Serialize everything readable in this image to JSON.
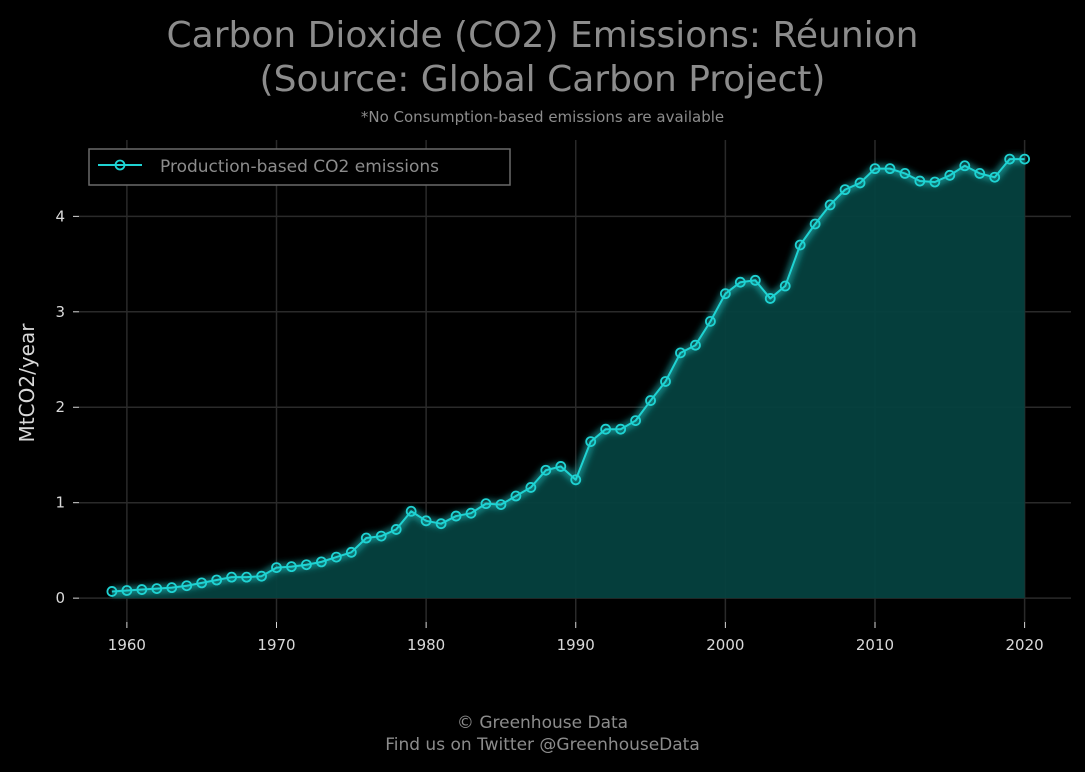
{
  "header": {
    "title_line1": "Carbon Dioxide (CO2) Emissions: Réunion",
    "title_line2": "(Source: Global Carbon Project)",
    "subtitle": "*No Consumption-based emissions are available"
  },
  "footer": {
    "line1": "© Greenhouse Data",
    "line2": "Find us on Twitter @GreenhouseData"
  },
  "colors": {
    "background": "#000000",
    "line": "#1fd3d3",
    "fill": "#05413f",
    "grid": "#2a2a2a",
    "text": "#d9d9d9",
    "title": "#8c8c8c"
  },
  "chart_data": {
    "type": "area",
    "title": "Carbon Dioxide (CO2) Emissions: Réunion (Source: Global Carbon Project)",
    "subtitle": "*No Consumption-based emissions are available",
    "xlabel": "",
    "ylabel": "MtCO2/year",
    "xlim": [
      1956.8,
      2023.1
    ],
    "ylim": [
      -0.25,
      4.8
    ],
    "x_ticks": [
      1960,
      1970,
      1980,
      1990,
      2000,
      2010,
      2020
    ],
    "y_ticks": [
      0,
      1,
      2,
      3,
      4
    ],
    "grid": true,
    "legend_position": "top-left",
    "series": [
      {
        "name": "Production-based CO2 emissions",
        "marker": "circle",
        "x": [
          1959,
          1960,
          1961,
          1962,
          1963,
          1964,
          1965,
          1966,
          1967,
          1968,
          1969,
          1970,
          1971,
          1972,
          1973,
          1974,
          1975,
          1976,
          1977,
          1978,
          1979,
          1980,
          1981,
          1982,
          1983,
          1984,
          1985,
          1986,
          1987,
          1988,
          1989,
          1990,
          1991,
          1992,
          1993,
          1994,
          1995,
          1996,
          1997,
          1998,
          1999,
          2000,
          2001,
          2002,
          2003,
          2004,
          2005,
          2006,
          2007,
          2008,
          2009,
          2010,
          2011,
          2012,
          2013,
          2014,
          2015,
          2016,
          2017,
          2018,
          2019,
          2020
        ],
        "values": [
          0.07,
          0.08,
          0.09,
          0.1,
          0.11,
          0.13,
          0.16,
          0.19,
          0.22,
          0.22,
          0.23,
          0.32,
          0.33,
          0.35,
          0.38,
          0.43,
          0.48,
          0.63,
          0.65,
          0.72,
          0.91,
          0.81,
          0.78,
          0.86,
          0.89,
          0.99,
          0.98,
          1.07,
          1.16,
          1.34,
          1.38,
          1.24,
          1.64,
          1.77,
          1.77,
          1.86,
          2.07,
          2.27,
          2.57,
          2.65,
          2.9,
          3.19,
          3.31,
          3.33,
          3.14,
          3.27,
          3.7,
          3.92,
          4.12,
          4.28,
          4.35,
          4.5,
          4.5,
          4.45,
          4.37,
          4.36,
          4.43,
          4.53,
          4.45,
          4.41,
          4.6,
          4.6
        ]
      }
    ]
  }
}
